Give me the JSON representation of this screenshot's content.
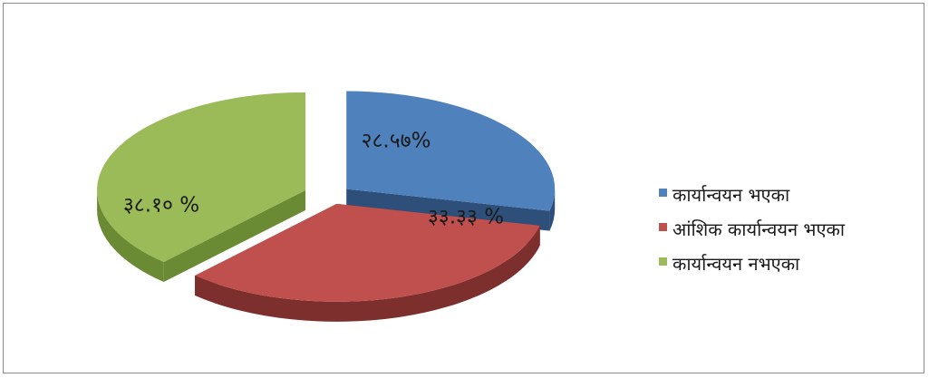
{
  "chart_data": {
    "type": "pie",
    "style": "3d-exploded",
    "slices": [
      {
        "label": "कार्यान्वयन भएका",
        "value": 28.57,
        "display": "२८.५७%",
        "color": "#4f81bd",
        "side_color": "#2e4f7a"
      },
      {
        "label": "आंशिक कार्यान्वयन भएका",
        "value": 33.33,
        "display": "३३.३३ %",
        "color": "#c0504d",
        "side_color": "#7d2f2d"
      },
      {
        "label": "कार्यान्वयन नभएका",
        "value": 38.1,
        "display": "३८.१० %",
        "color": "#9bbb59",
        "side_color": "#6a8a34"
      }
    ],
    "legend_position": "right"
  }
}
